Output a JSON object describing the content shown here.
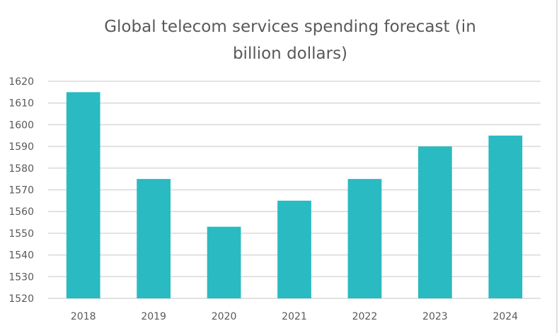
{
  "chart_data": {
    "type": "bar",
    "title_lines": [
      "Global telecom services spending forecast (in",
      "billion dollars)"
    ],
    "categories": [
      "2018",
      "2019",
      "2020",
      "2021",
      "2022",
      "2023",
      "2024"
    ],
    "values": [
      1615,
      1575,
      1553,
      1565,
      1575,
      1590,
      1595
    ],
    "xlabel": "",
    "ylabel": "",
    "ylim": [
      1520,
      1620
    ],
    "yticks": [
      1520,
      1530,
      1540,
      1550,
      1560,
      1570,
      1580,
      1590,
      1600,
      1610,
      1620
    ],
    "grid": true,
    "legend": "none",
    "bar_color": "#2ABAC2"
  }
}
